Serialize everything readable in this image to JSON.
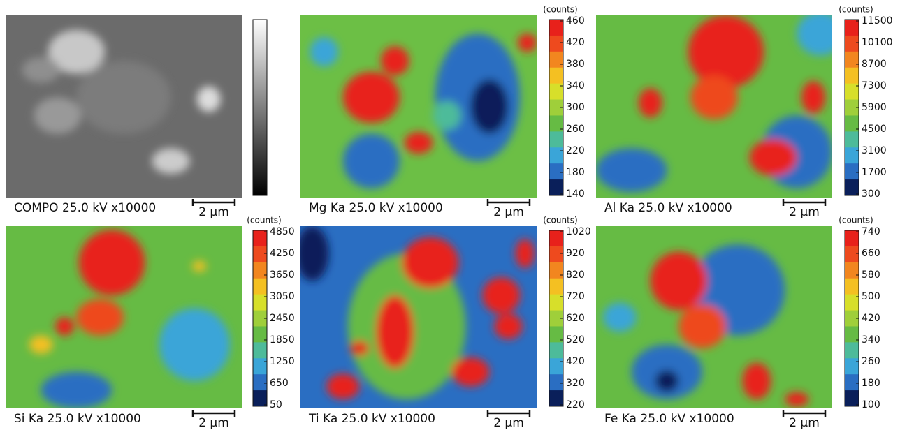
{
  "panels": [
    {
      "caption": "COMPO 25.0 kV x10000",
      "scale_bar": "2 µm",
      "colorbar": {
        "map": "gray"
      }
    },
    {
      "caption": "Mg Ka 25.0 kV x10000",
      "scale_bar": "2 µm",
      "colorbar": {
        "map": "jet",
        "unit": "(counts)",
        "ticks": [
          460,
          420,
          380,
          340,
          300,
          260,
          220,
          180,
          140
        ]
      }
    },
    {
      "caption": "Al Ka 25.0 kV x10000",
      "scale_bar": "2 µm",
      "colorbar": {
        "map": "jet",
        "unit": "(counts)",
        "ticks": [
          11500,
          10100,
          8700,
          7300,
          5900,
          4500,
          3100,
          1700,
          300
        ]
      }
    },
    {
      "caption": "Si Ka 25.0 kV x10000",
      "scale_bar": "2 µm",
      "colorbar": {
        "map": "jet",
        "unit": "(counts)",
        "ticks": [
          4850,
          4250,
          3650,
          3050,
          2450,
          1850,
          1250,
          650,
          50
        ]
      }
    },
    {
      "caption": "Ti Ka 25.0 kV x10000",
      "scale_bar": "2 µm",
      "colorbar": {
        "map": "jet",
        "unit": "(counts)",
        "ticks": [
          1020,
          920,
          820,
          720,
          620,
          520,
          420,
          320,
          220
        ]
      }
    },
    {
      "caption": "Fe Ka 25.0 kV x10000",
      "scale_bar": "2 µm",
      "colorbar": {
        "map": "jet",
        "unit": "(counts)",
        "ticks": [
          740,
          660,
          580,
          500,
          420,
          340,
          260,
          180,
          100
        ]
      }
    }
  ]
}
